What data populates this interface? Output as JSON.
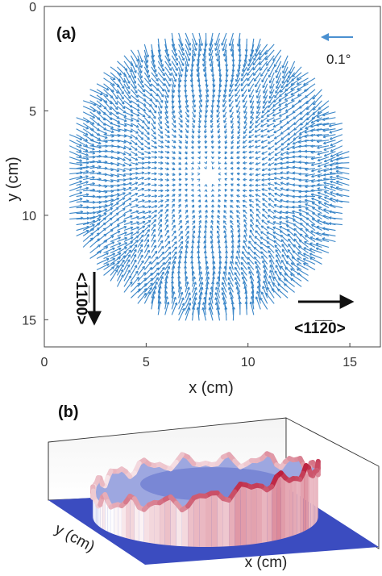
{
  "chart_data": [
    {
      "type": "quiver",
      "panel_label": "(a)",
      "xlabel": "x (cm)",
      "ylabel": "y (cm)",
      "xlim": [
        0,
        16.5
      ],
      "ylim": [
        16.3,
        0
      ],
      "y_inverted": true,
      "xticks": [
        "0",
        "5",
        "10",
        "15"
      ],
      "yticks": [
        "0",
        "5",
        "10",
        "15"
      ],
      "field": {
        "center": [
          8.0,
          8.1
        ],
        "radius": 7.1,
        "grid_spacing_x": 0.335,
        "grid_spacing_y": 0.27,
        "pattern": "tilt vectors pointing toward the wafer center, magnitude growing with radius; near-zero at center",
        "color": "#3a86c8"
      },
      "scale_arrow": {
        "label": "0.1°",
        "color": "#4a90d0"
      },
      "crystal_directions": [
        {
          "label": "<1̅1̅00>",
          "direction": "down"
        },
        {
          "label": "<11̅2̅0>",
          "direction": "right"
        }
      ]
    },
    {
      "type": "surface3d",
      "panel_label": "(b)",
      "xlabel": "x (cm)",
      "ylabel": "y (cm)",
      "colormap": [
        "#3a4fc0",
        "#ffffff",
        "#b40426"
      ],
      "shape": "dome-shaped circular surface whose height rises toward the back-right rim"
    }
  ]
}
